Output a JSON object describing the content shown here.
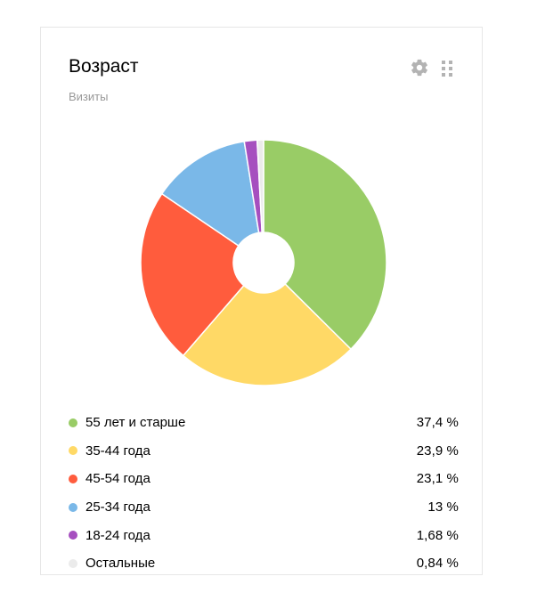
{
  "widget": {
    "title": "Возраст",
    "subtitle": "Визиты",
    "settings_icon": "gear-icon",
    "drag_icon": "drag-handle-icon"
  },
  "chart_data": {
    "type": "pie",
    "donut": true,
    "legend": "bottom",
    "categories": [
      "55 лет и старше",
      "35-44 года",
      "45-54 года",
      "25-34 года",
      "18-24 года",
      "Остальные"
    ],
    "values": [
      37.4,
      23.9,
      23.1,
      13,
      1.68,
      0.84
    ],
    "value_labels": [
      "37,4 %",
      "23,9 %",
      "23,1 %",
      "13 %",
      "1,68 %",
      "0,84 %"
    ],
    "colors": [
      "#99cc66",
      "#ffd966",
      "#ff5c3d",
      "#7ab8e8",
      "#a64fbf",
      "#ebebeb"
    ]
  }
}
